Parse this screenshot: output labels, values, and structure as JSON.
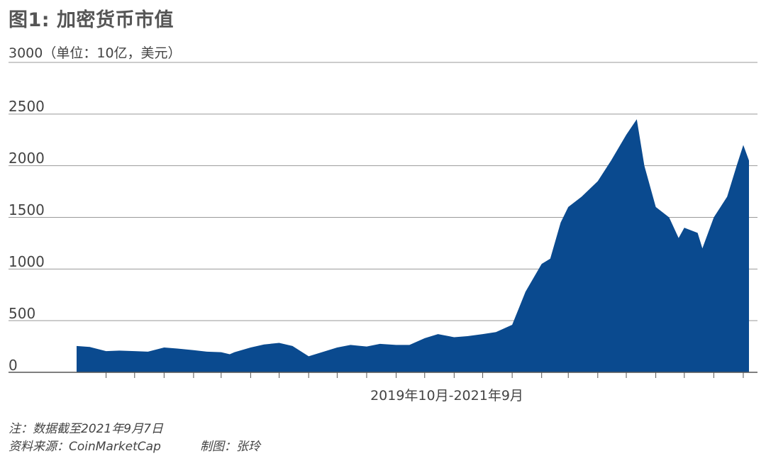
{
  "chart_data": {
    "type": "area",
    "title": "图1: 加密货币市值",
    "ylabel": "3000（单位：10亿，美元）",
    "xlabel": "2019年10月-2021年9月",
    "ylim": [
      0,
      3000
    ],
    "yticks": [
      "0",
      "500",
      "1000",
      "1500",
      "2000",
      "2500"
    ],
    "grid": true,
    "color": "#0a4a8f",
    "x": [
      "2019-10-01",
      "2019-10-15",
      "2019-11-01",
      "2019-11-15",
      "2019-12-01",
      "2019-12-15",
      "2020-01-01",
      "2020-01-15",
      "2020-02-01",
      "2020-02-15",
      "2020-03-01",
      "2020-03-10",
      "2020-03-15",
      "2020-04-01",
      "2020-04-15",
      "2020-05-01",
      "2020-05-15",
      "2020-06-01",
      "2020-06-15",
      "2020-07-01",
      "2020-07-15",
      "2020-08-01",
      "2020-08-15",
      "2020-09-01",
      "2020-09-15",
      "2020-10-01",
      "2020-10-15",
      "2020-11-01",
      "2020-11-15",
      "2020-12-01",
      "2020-12-15",
      "2021-01-01",
      "2021-01-08",
      "2021-01-15",
      "2021-02-01",
      "2021-02-10",
      "2021-02-21",
      "2021-03-01",
      "2021-03-15",
      "2021-04-01",
      "2021-04-15",
      "2021-05-01",
      "2021-05-12",
      "2021-05-20",
      "2021-06-01",
      "2021-06-15",
      "2021-06-25",
      "2021-07-01",
      "2021-07-15",
      "2021-07-20",
      "2021-08-01",
      "2021-08-15",
      "2021-08-25",
      "2021-09-01",
      "2021-09-07"
    ],
    "values": [
      255,
      245,
      205,
      210,
      205,
      200,
      240,
      230,
      215,
      200,
      195,
      175,
      195,
      240,
      270,
      285,
      255,
      155,
      195,
      240,
      265,
      250,
      275,
      265,
      265,
      330,
      370,
      340,
      350,
      370,
      390,
      460,
      620,
      780,
      1050,
      1100,
      1450,
      1600,
      1700,
      1850,
      2050,
      2300,
      2450,
      2000,
      1600,
      1500,
      1300,
      1400,
      1350,
      1200,
      1500,
      1700,
      2000,
      2200,
      2050
    ]
  },
  "notes": {
    "note": "注：数据截至2021年9月7日",
    "source": "资料来源：CoinMarketCap",
    "author": "制图：张玲"
  }
}
